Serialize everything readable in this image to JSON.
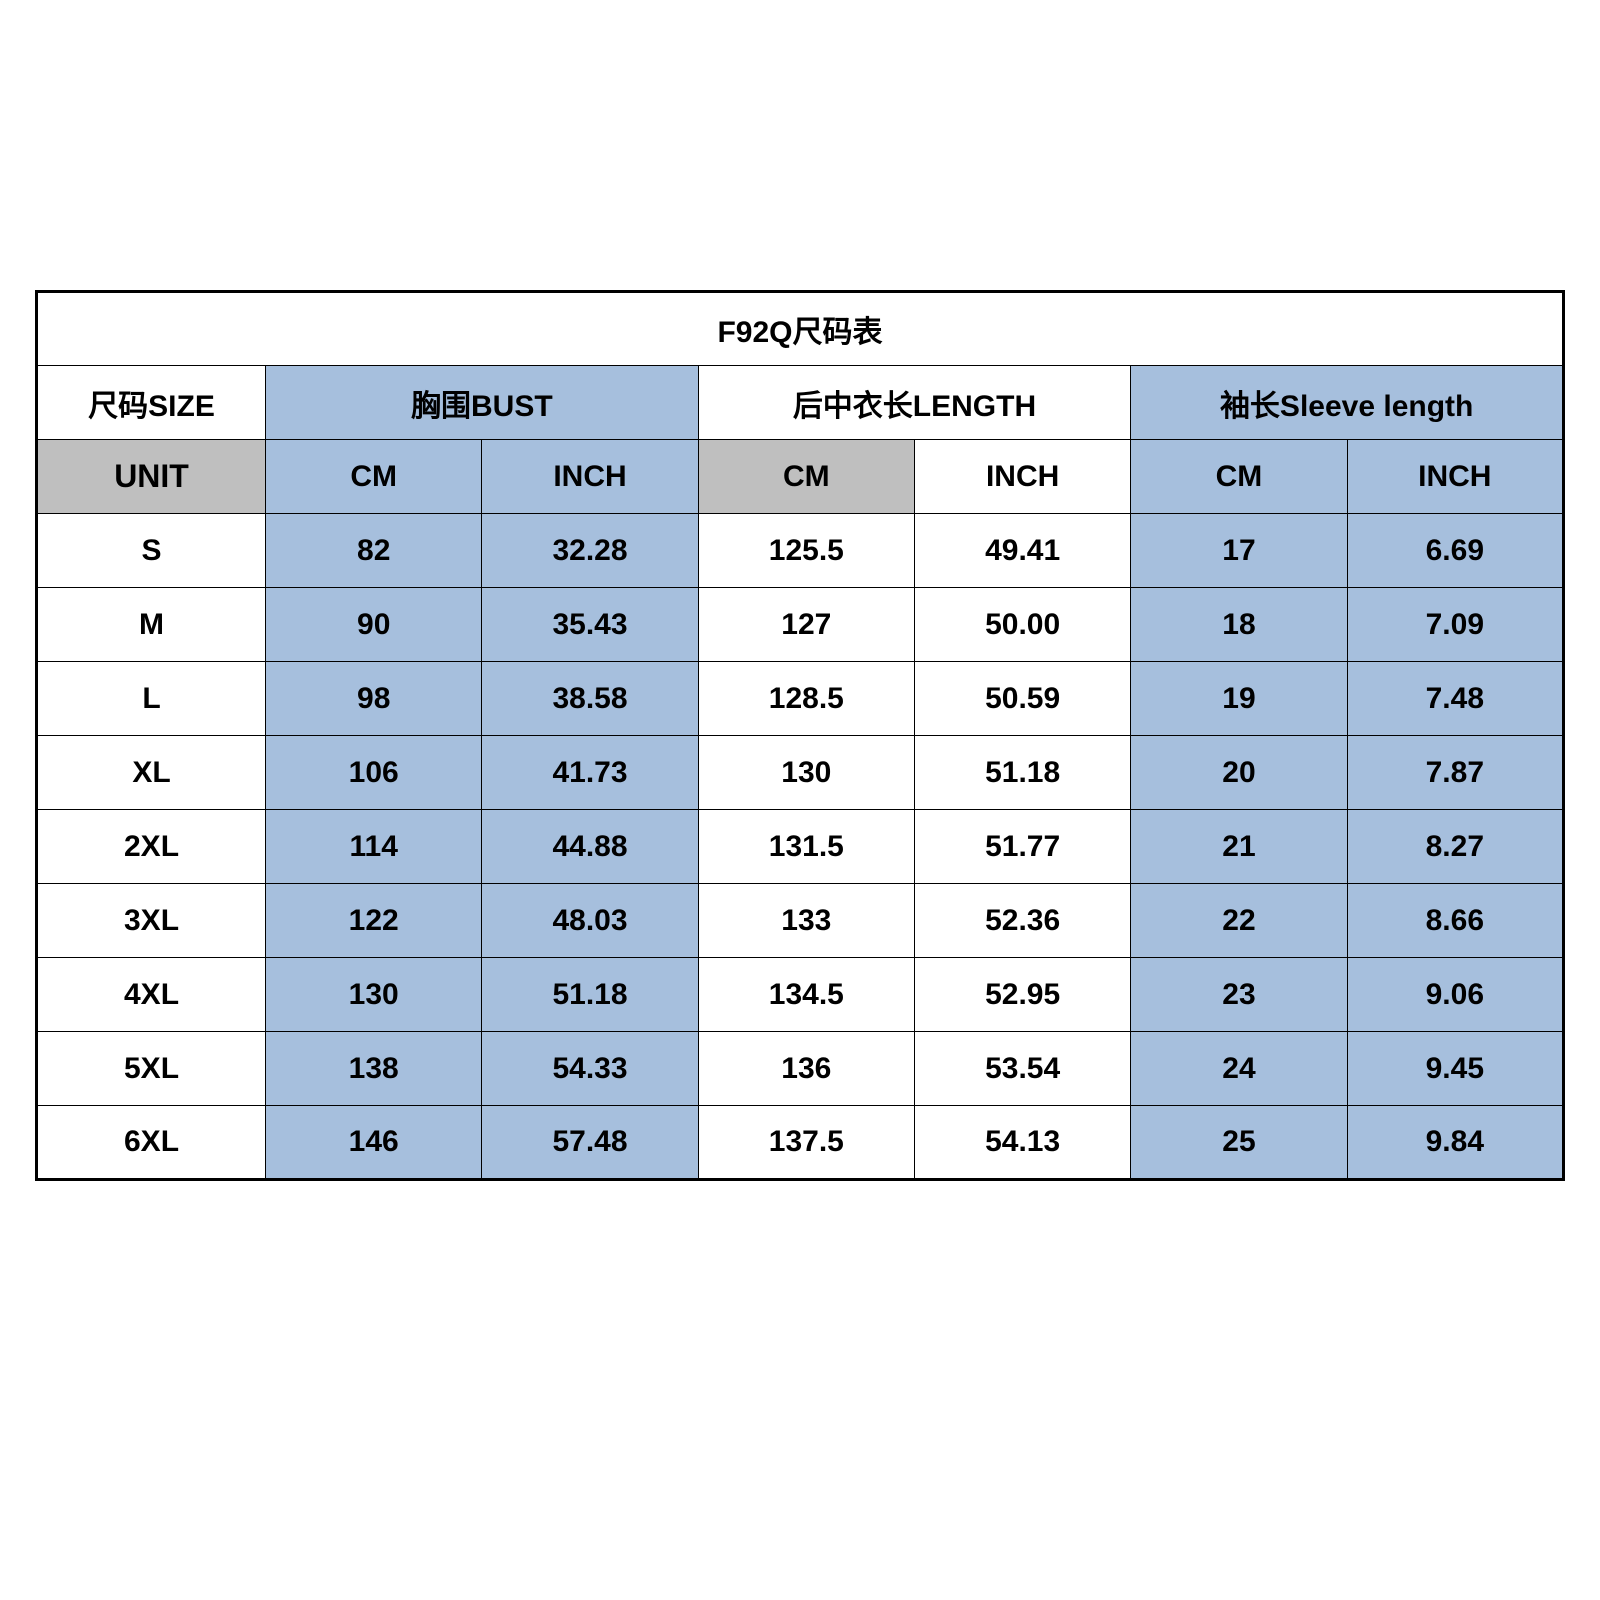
{
  "table": {
    "type": "table",
    "colors": {
      "white": "#ffffff",
      "blue": "#a6bfdd",
      "gray": "#bfbfbf",
      "border": "#000000",
      "text": "#000000"
    },
    "fonts": {
      "title_pt": 33,
      "header_pt": 30,
      "unit_pt": 30,
      "body_pt": 30,
      "weight": 700
    },
    "title": "F92Q尺码表",
    "headers": {
      "size": "尺码SIZE",
      "bust": "胸围BUST",
      "length": "后中衣长LENGTH",
      "sleeve": "袖长Sleeve length"
    },
    "units": {
      "label": "UNIT",
      "cm": "CM",
      "inch": "INCH"
    },
    "column_groups": [
      {
        "key": "bust",
        "shaded": true
      },
      {
        "key": "length",
        "shaded": false
      },
      {
        "key": "sleeve",
        "shaded": true
      }
    ],
    "col_widths_pct": [
      15,
      14.17,
      14.17,
      14.17,
      14.17,
      14.17,
      14.17
    ],
    "rows": [
      {
        "size": "S",
        "bust_cm": "82",
        "bust_in": "32.28",
        "len_cm": "125.5",
        "len_in": "49.41",
        "slv_cm": "17",
        "slv_in": "6.69"
      },
      {
        "size": "M",
        "bust_cm": "90",
        "bust_in": "35.43",
        "len_cm": "127",
        "len_in": "50.00",
        "slv_cm": "18",
        "slv_in": "7.09"
      },
      {
        "size": "L",
        "bust_cm": "98",
        "bust_in": "38.58",
        "len_cm": "128.5",
        "len_in": "50.59",
        "slv_cm": "19",
        "slv_in": "7.48"
      },
      {
        "size": "XL",
        "bust_cm": "106",
        "bust_in": "41.73",
        "len_cm": "130",
        "len_in": "51.18",
        "slv_cm": "20",
        "slv_in": "7.87"
      },
      {
        "size": "2XL",
        "bust_cm": "114",
        "bust_in": "44.88",
        "len_cm": "131.5",
        "len_in": "51.77",
        "slv_cm": "21",
        "slv_in": "8.27"
      },
      {
        "size": "3XL",
        "bust_cm": "122",
        "bust_in": "48.03",
        "len_cm": "133",
        "len_in": "52.36",
        "slv_cm": "22",
        "slv_in": "8.66"
      },
      {
        "size": "4XL",
        "bust_cm": "130",
        "bust_in": "51.18",
        "len_cm": "134.5",
        "len_in": "52.95",
        "slv_cm": "23",
        "slv_in": "9.06"
      },
      {
        "size": "5XL",
        "bust_cm": "138",
        "bust_in": "54.33",
        "len_cm": "136",
        "len_in": "53.54",
        "slv_cm": "24",
        "slv_in": "9.45"
      },
      {
        "size": "6XL",
        "bust_cm": "146",
        "bust_in": "57.48",
        "len_cm": "137.5",
        "len_in": "54.13",
        "slv_cm": "25",
        "slv_in": "9.84"
      }
    ]
  }
}
